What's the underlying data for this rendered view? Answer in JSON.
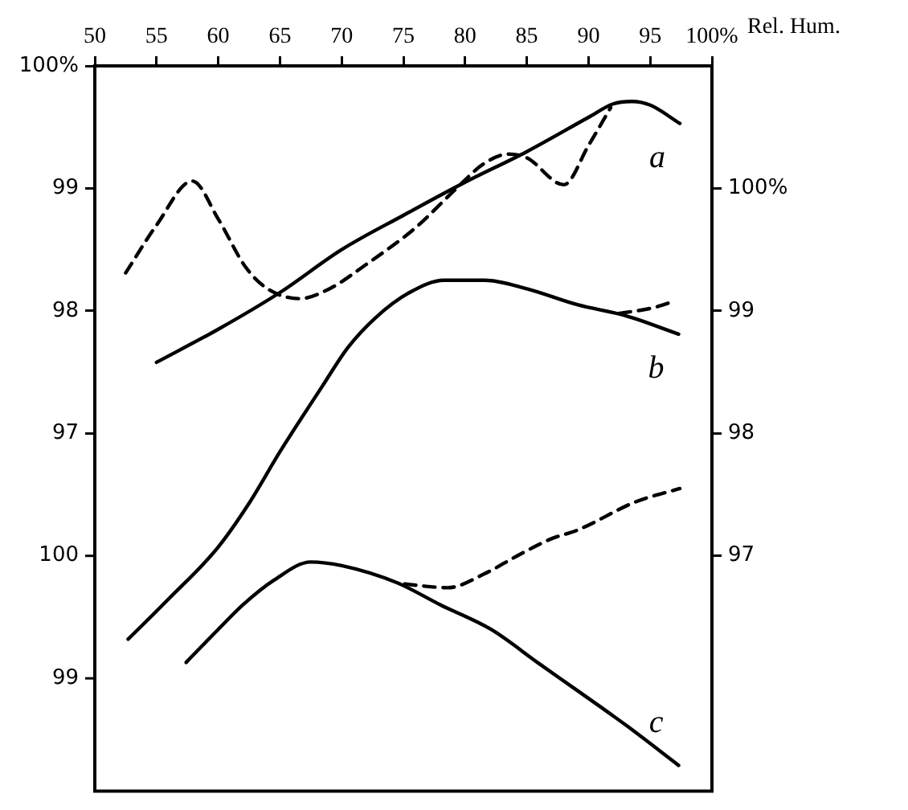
{
  "chart_data": {
    "type": "line",
    "xlabel": "Rel. Hum.",
    "marker": "none",
    "legend": false,
    "xlim": [
      50,
      100
    ],
    "xticks": [
      50,
      55,
      60,
      65,
      70,
      75,
      80,
      85,
      90,
      95,
      {
        "value": 100,
        "label": "100%"
      }
    ],
    "ylim": [
      94.08,
      100
    ],
    "yticks": [
      97,
      98,
      99,
      {
        "value": 100,
        "label": "100%"
      }
    ],
    "y2lim": [
      95.08,
      101
    ],
    "y2ticks": [
      97,
      98,
      99,
      {
        "value": 100,
        "label": "100%"
      }
    ],
    "y3lim": [
      98.08,
      104
    ],
    "y3ticks": [
      99,
      100
    ],
    "series": [
      {
        "name": "a",
        "color": "#000000",
        "line_style": "solid",
        "axis": "y",
        "x": [
          55,
          60,
          65,
          70,
          75,
          80,
          85,
          90,
          92,
          93.5,
          95,
          97.4
        ],
        "values": [
          97.58,
          97.85,
          98.15,
          98.5,
          98.78,
          99.05,
          99.3,
          99.58,
          99.69,
          99.71,
          99.68,
          99.53
        ]
      },
      {
        "color": "#000000",
        "line_style": "dashed",
        "axis": "y",
        "x": [
          52.5,
          55,
          57.9,
          60,
          62.2,
          64,
          66.6,
          69,
          72,
          76,
          79.2,
          81.5,
          83.5,
          85,
          88,
          90,
          91.8
        ],
        "values": [
          98.31,
          98.7,
          99.06,
          98.75,
          98.36,
          98.18,
          98.1,
          98.18,
          98.38,
          98.68,
          98.99,
          99.2,
          99.28,
          99.25,
          99.03,
          99.35,
          99.66
        ]
      },
      {
        "name": "b",
        "color": "#000000",
        "line_style": "solid",
        "axis": "y2",
        "x": [
          52.7,
          56,
          59.9,
          62.5,
          65,
          68.4,
          70.5,
          72.7,
          75.5,
          78.3,
          81.6,
          85,
          89.1,
          93,
          97.3
        ],
        "values": [
          96.32,
          96.65,
          97.06,
          97.43,
          97.85,
          98.38,
          98.7,
          98.94,
          99.15,
          99.25,
          99.25,
          99.18,
          99.05,
          98.96,
          98.81
        ]
      },
      {
        "color": "#000000",
        "line_style": "dashed",
        "axis": "y2",
        "x": [
          92.5,
          95,
          97
        ],
        "values": [
          98.98,
          99.02,
          99.08
        ]
      },
      {
        "name": "c",
        "color": "#000000",
        "line_style": "solid",
        "axis": "y3",
        "x": [
          57.4,
          60,
          62,
          64.5,
          67.5,
          70,
          74.5,
          78,
          82.1,
          86,
          89.1,
          93,
          97.3
        ],
        "values": [
          99.13,
          99.4,
          99.6,
          99.8,
          99.95,
          99.92,
          99.78,
          99.6,
          99.4,
          99.12,
          98.9,
          98.62,
          98.29
        ]
      },
      {
        "color": "#000000",
        "line_style": "dashed",
        "axis": "y3",
        "x": [
          75.1,
          78.6,
          81.5,
          84.4,
          87,
          89.1,
          93.8,
          97.4
        ],
        "values": [
          99.77,
          99.74,
          99.85,
          100.01,
          100.14,
          100.21,
          100.44,
          100.55
        ]
      }
    ]
  }
}
